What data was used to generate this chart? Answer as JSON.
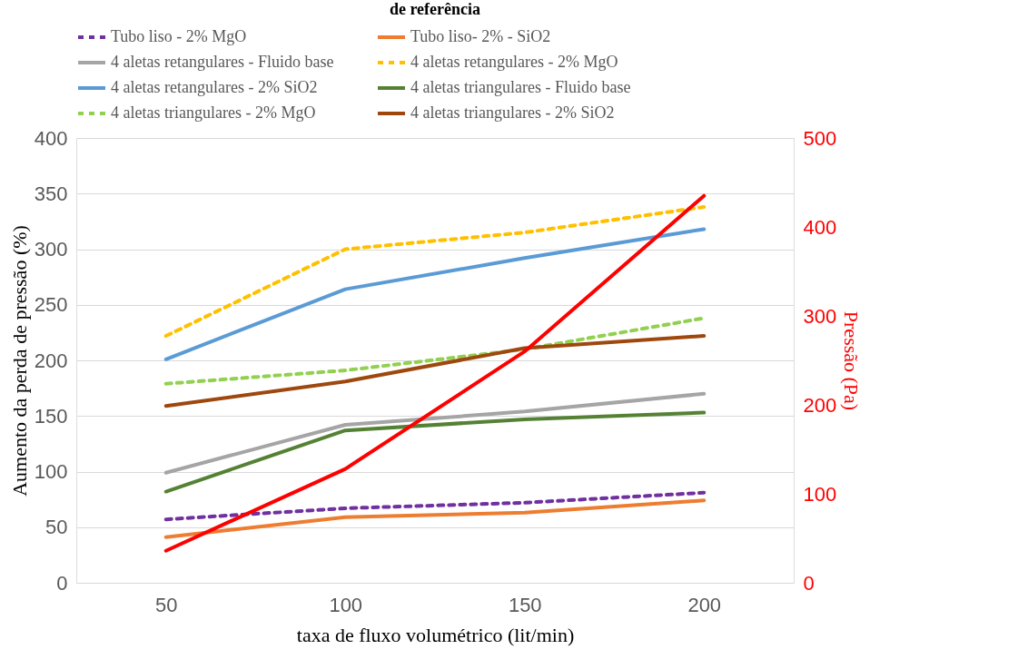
{
  "chart_data": {
    "type": "line",
    "title": "de referência",
    "categories": [
      "50",
      "100",
      "150",
      "200"
    ],
    "xlabel": "taxa de fluxo volumétrico (lit/min)",
    "ylabel": "Aumento da perda de pressão (%)",
    "y2label": "Pressão (Pa)",
    "ylim": [
      0,
      400
    ],
    "yticks": [
      0,
      50,
      100,
      150,
      200,
      250,
      300,
      350,
      400
    ],
    "y2lim": [
      0,
      500
    ],
    "y2ticks": [
      0,
      100,
      200,
      300,
      400,
      500
    ],
    "grid": "y",
    "legend": "top",
    "series": [
      {
        "name": "Tubo liso - 2% MgO",
        "color": "#7030a0",
        "line_style": "dashed",
        "values": [
          57,
          67,
          72,
          81
        ]
      },
      {
        "name": "Tubo liso- 2% - SiO2",
        "color": "#ed7d31",
        "line_style": "solid",
        "values": [
          41,
          59,
          63,
          74
        ]
      },
      {
        "name": "4 aletas retangulares - Fluido base",
        "color": "#a5a5a5",
        "line_style": "solid",
        "values": [
          99,
          142,
          154,
          170
        ]
      },
      {
        "name": "4 aletas retangulares - 2% MgO",
        "color": "#ffc000",
        "line_style": "dashed",
        "values": [
          222,
          300,
          315,
          338
        ]
      },
      {
        "name": "4 aletas retangulares - 2% SiO2",
        "color": "#5b9bd5",
        "line_style": "solid",
        "values": [
          201,
          264,
          292,
          318
        ]
      },
      {
        "name": "4 aletas triangulares - Fluido base",
        "color": "#548235",
        "line_style": "solid",
        "values": [
          82,
          137,
          147,
          153
        ]
      },
      {
        "name": "4 aletas triangulares - 2% MgO",
        "color": "#92d050",
        "line_style": "dashed",
        "values": [
          179,
          191,
          210,
          238
        ]
      },
      {
        "name": "4 aletas triangulares - 2% SiO2",
        "color": "#9e480e",
        "line_style": "solid",
        "values": [
          159,
          181,
          211,
          222
        ]
      },
      {
        "color": "#ff0000",
        "line_style": "solid",
        "axis": "y2",
        "values": [
          36,
          128,
          260,
          435
        ]
      }
    ]
  }
}
